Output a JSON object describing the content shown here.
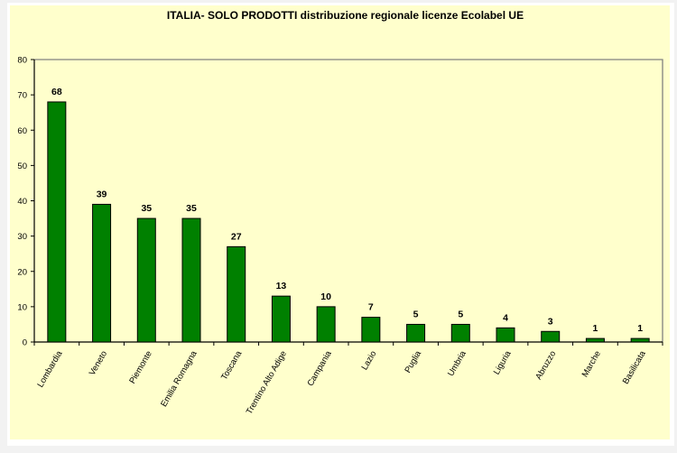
{
  "chart_data": {
    "type": "bar",
    "title": "ITALIA- SOLO PRODOTTI  distribuzione regionale licenze Ecolabel UE",
    "xlabel": "",
    "ylabel": "",
    "categories": [
      "Lombardia",
      "Veneto",
      "Piemonte",
      "Emilia Romagna",
      "Toscana",
      "Trentino Alto Adige",
      "Campania",
      "Lazio",
      "Puglia",
      "Umbria",
      "Liguria",
      "Abruzzo",
      "Marche",
      "Basilicata"
    ],
    "values": [
      68,
      39,
      35,
      35,
      27,
      13,
      10,
      7,
      5,
      5,
      4,
      3,
      1,
      1
    ],
    "ylim": [
      0,
      80
    ],
    "yticks": [
      0,
      10,
      20,
      30,
      40,
      50,
      60,
      70,
      80
    ],
    "grid": false,
    "legend": null,
    "data_labels": true,
    "colors": {
      "bar": "#008000",
      "bar_outline": "#000000",
      "background": "#ffffcc",
      "plot_border": "#808080"
    }
  }
}
